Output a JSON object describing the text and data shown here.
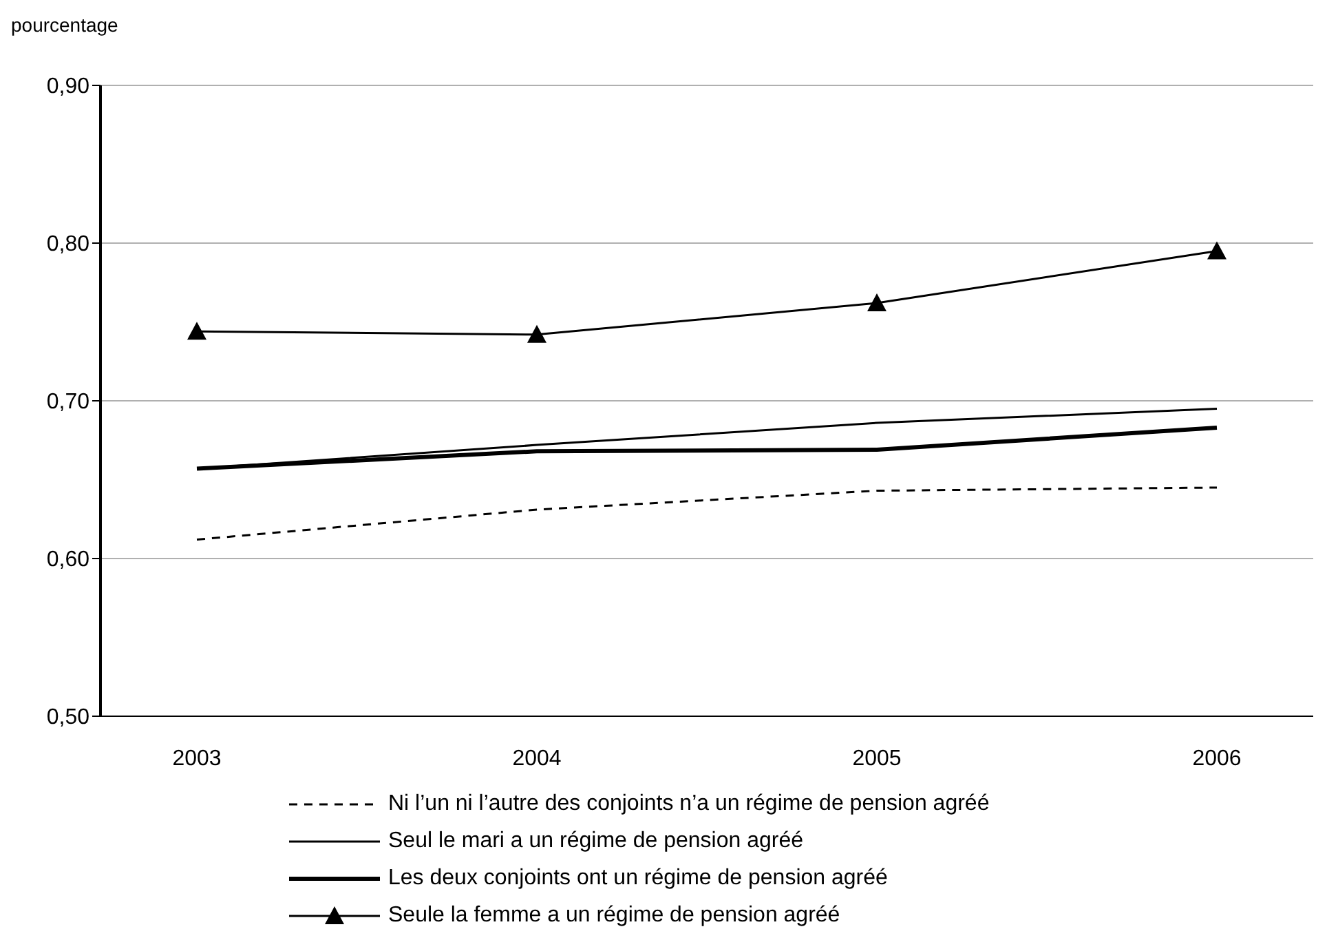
{
  "chart_data": {
    "type": "line",
    "ylabel": "pourcentage",
    "categories": [
      "2003",
      "2004",
      "2005",
      "2006"
    ],
    "series": [
      {
        "name": "Ni l’un ni l’autre des conjoints n’a un régime de pension agréé",
        "color": "#000000",
        "values": [
          0.612,
          0.631,
          0.643,
          0.645
        ],
        "line_style": "dashed",
        "marker": "none"
      },
      {
        "name": "Seul le mari a un régime de pension agréé",
        "color": "#000000",
        "values": [
          0.657,
          0.672,
          0.686,
          0.695
        ],
        "line_style": "solid",
        "marker": "none"
      },
      {
        "name": "Les deux conjoints ont un régime de pension agréé",
        "color": "#000000",
        "values": [
          0.657,
          0.668,
          0.669,
          0.683
        ],
        "line_style": "solid",
        "marker": "none"
      },
      {
        "name": "Seule la femme a un régime de pension agréé",
        "color": "#000000",
        "values": [
          0.744,
          0.742,
          0.762,
          0.795
        ],
        "line_style": "solid",
        "marker": "triangle"
      }
    ],
    "ylim": [
      0.5,
      0.9
    ],
    "yticks": [
      {
        "value": 0.5,
        "label": "0,50"
      },
      {
        "value": 0.6,
        "label": "0,60"
      },
      {
        "value": 0.7,
        "label": "0,70"
      },
      {
        "value": 0.8,
        "label": "0,80"
      },
      {
        "value": 0.9,
        "label": "0,90"
      }
    ],
    "grid": "y",
    "legend": "bottom"
  }
}
